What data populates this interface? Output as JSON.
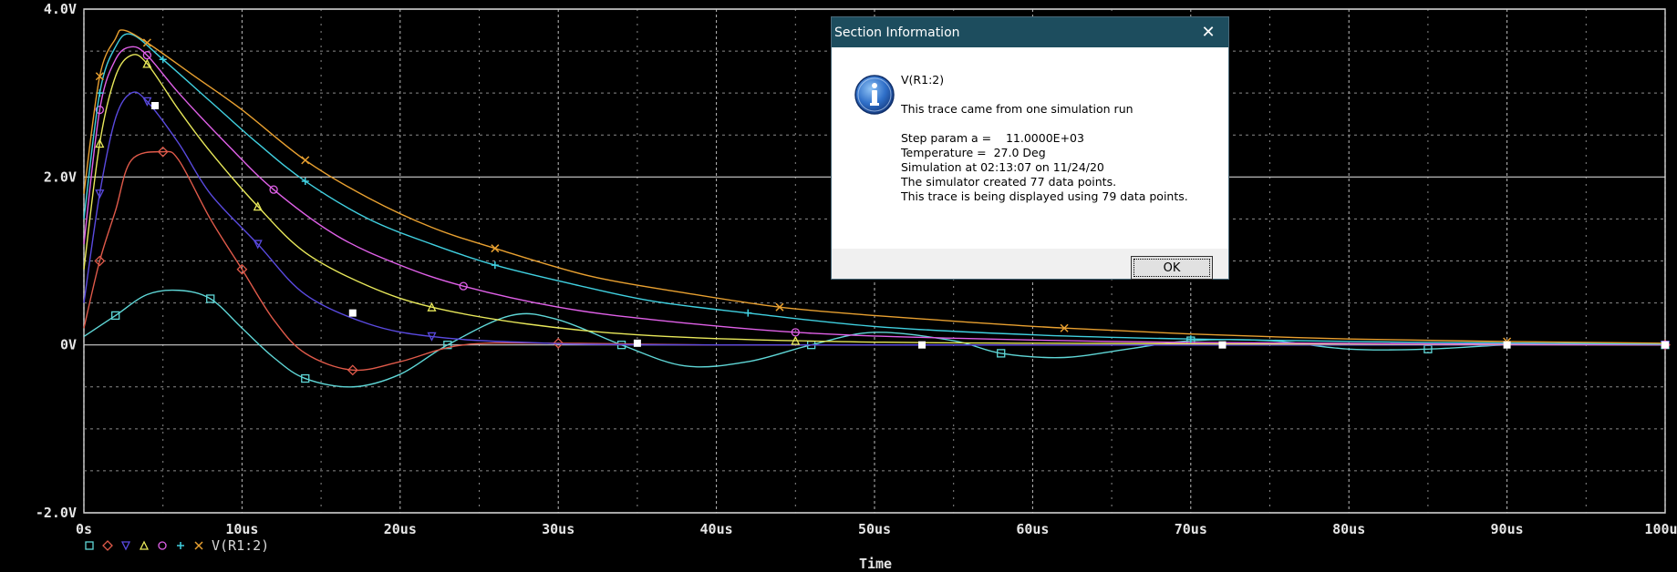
{
  "window": {
    "xlabel": "Time"
  },
  "chart_data": {
    "type": "line",
    "xlabel": "Time",
    "ylabel": "",
    "x_ticks": [
      "0s",
      "10us",
      "20us",
      "30us",
      "40us",
      "50us",
      "60us",
      "70us",
      "80us",
      "90us",
      "100us"
    ],
    "y_ticks": [
      "4.0V",
      "2.0V",
      "0V",
      "-2.0V"
    ],
    "xlim": [
      0,
      100
    ],
    "ylim": [
      -2,
      4
    ],
    "grid": true,
    "legend_label": "V(R1:2)",
    "legend_placement": "bottom-left",
    "series": [
      {
        "color": "#5fd7d7",
        "marker": "square",
        "points": [
          [
            0,
            0.1
          ],
          [
            2,
            0.35
          ],
          [
            4,
            0.6
          ],
          [
            6,
            0.65
          ],
          [
            8,
            0.55
          ],
          [
            10,
            0.2
          ],
          [
            12,
            -0.15
          ],
          [
            14,
            -0.4
          ],
          [
            17,
            -0.5
          ],
          [
            20,
            -0.35
          ],
          [
            23,
            0
          ],
          [
            27,
            0.35
          ],
          [
            30,
            0.3
          ],
          [
            34,
            0
          ],
          [
            38,
            -0.25
          ],
          [
            42,
            -0.2
          ],
          [
            46,
            0
          ],
          [
            50,
            0.15
          ],
          [
            55,
            0.05
          ],
          [
            58,
            -0.1
          ],
          [
            62,
            -0.15
          ],
          [
            66,
            -0.05
          ],
          [
            70,
            0.05
          ],
          [
            75,
            0.05
          ],
          [
            80,
            -0.05
          ],
          [
            85,
            -0.05
          ],
          [
            90,
            0
          ],
          [
            95,
            0.02
          ],
          [
            100,
            0
          ]
        ]
      },
      {
        "color": "#e05a4a",
        "marker": "diamond",
        "points": [
          [
            0,
            0.2
          ],
          [
            1,
            1.0
          ],
          [
            2,
            1.6
          ],
          [
            3,
            2.2
          ],
          [
            5,
            2.3
          ],
          [
            6,
            2.2
          ],
          [
            8,
            1.5
          ],
          [
            10,
            0.9
          ],
          [
            12,
            0.3
          ],
          [
            14,
            -0.1
          ],
          [
            17,
            -0.3
          ],
          [
            20,
            -0.2
          ],
          [
            24,
            0
          ],
          [
            30,
            0.02
          ],
          [
            40,
            0
          ],
          [
            60,
            0
          ],
          [
            100,
            0
          ]
        ]
      },
      {
        "color": "#5a4ae0",
        "marker": "triangle-down",
        "points": [
          [
            0,
            0.5
          ],
          [
            1,
            1.8
          ],
          [
            2,
            2.7
          ],
          [
            3,
            3.0
          ],
          [
            4,
            2.9
          ],
          [
            6,
            2.4
          ],
          [
            8,
            1.8
          ],
          [
            11,
            1.2
          ],
          [
            14,
            0.6
          ],
          [
            18,
            0.25
          ],
          [
            22,
            0.1
          ],
          [
            28,
            0.03
          ],
          [
            40,
            0
          ],
          [
            100,
            0
          ]
        ]
      },
      {
        "color": "#e8e85a",
        "marker": "triangle-up",
        "points": [
          [
            0,
            0.9
          ],
          [
            1,
            2.4
          ],
          [
            2,
            3.2
          ],
          [
            3,
            3.45
          ],
          [
            4,
            3.35
          ],
          [
            6,
            2.8
          ],
          [
            8,
            2.3
          ],
          [
            11,
            1.65
          ],
          [
            14,
            1.1
          ],
          [
            18,
            0.7
          ],
          [
            22,
            0.45
          ],
          [
            28,
            0.25
          ],
          [
            35,
            0.12
          ],
          [
            45,
            0.05
          ],
          [
            60,
            0.02
          ],
          [
            100,
            0
          ]
        ]
      },
      {
        "color": "#e060e8",
        "marker": "circle",
        "points": [
          [
            0,
            1.2
          ],
          [
            1,
            2.8
          ],
          [
            2,
            3.4
          ],
          [
            3,
            3.55
          ],
          [
            4,
            3.45
          ],
          [
            6,
            3.0
          ],
          [
            9,
            2.4
          ],
          [
            12,
            1.85
          ],
          [
            16,
            1.3
          ],
          [
            20,
            0.95
          ],
          [
            24,
            0.7
          ],
          [
            30,
            0.45
          ],
          [
            36,
            0.3
          ],
          [
            45,
            0.15
          ],
          [
            55,
            0.08
          ],
          [
            70,
            0.03
          ],
          [
            100,
            0
          ]
        ]
      },
      {
        "color": "#40d0e0",
        "marker": "plus",
        "points": [
          [
            0,
            1.5
          ],
          [
            1,
            3.0
          ],
          [
            2,
            3.55
          ],
          [
            3,
            3.7
          ],
          [
            5,
            3.4
          ],
          [
            8,
            2.9
          ],
          [
            11,
            2.4
          ],
          [
            14,
            1.95
          ],
          [
            18,
            1.5
          ],
          [
            22,
            1.2
          ],
          [
            26,
            0.95
          ],
          [
            31,
            0.72
          ],
          [
            36,
            0.52
          ],
          [
            42,
            0.38
          ],
          [
            50,
            0.22
          ],
          [
            60,
            0.12
          ],
          [
            70,
            0.07
          ],
          [
            85,
            0.03
          ],
          [
            100,
            0.01
          ]
        ]
      },
      {
        "color": "#e8a030",
        "marker": "x",
        "points": [
          [
            0,
            1.8
          ],
          [
            1,
            3.2
          ],
          [
            2,
            3.65
          ],
          [
            2.5,
            3.75
          ],
          [
            4,
            3.6
          ],
          [
            7,
            3.2
          ],
          [
            10,
            2.8
          ],
          [
            14,
            2.2
          ],
          [
            18,
            1.75
          ],
          [
            22,
            1.4
          ],
          [
            26,
            1.15
          ],
          [
            32,
            0.82
          ],
          [
            38,
            0.62
          ],
          [
            44,
            0.45
          ],
          [
            50,
            0.35
          ],
          [
            56,
            0.27
          ],
          [
            62,
            0.2
          ],
          [
            70,
            0.13
          ],
          [
            80,
            0.07
          ],
          [
            90,
            0.04
          ],
          [
            100,
            0.02
          ]
        ]
      },
      {
        "color": "#ffffff",
        "marker": "filled-square",
        "points": [
          [
            4.5,
            2.85
          ],
          [
            17,
            0.38
          ],
          [
            35,
            0.02
          ],
          [
            53,
            0
          ],
          [
            72,
            0
          ],
          [
            90,
            0
          ],
          [
            100,
            0
          ]
        ]
      }
    ]
  },
  "dialog": {
    "title": "Section Information",
    "close_label": "✕",
    "trace_name": "V(R1:2)",
    "line1": "This trace came from one simulation run",
    "step_param": "Step param a =    11.0000E+03",
    "temperature": "Temperature =  27.0 Deg",
    "simulation": "Simulation at 02:13:07 on 11/24/20",
    "created": "The simulator created 77 data points.",
    "displayed": "This trace is being displayed using 79 data points.",
    "ok_label": "OK",
    "icon": "info-icon"
  }
}
